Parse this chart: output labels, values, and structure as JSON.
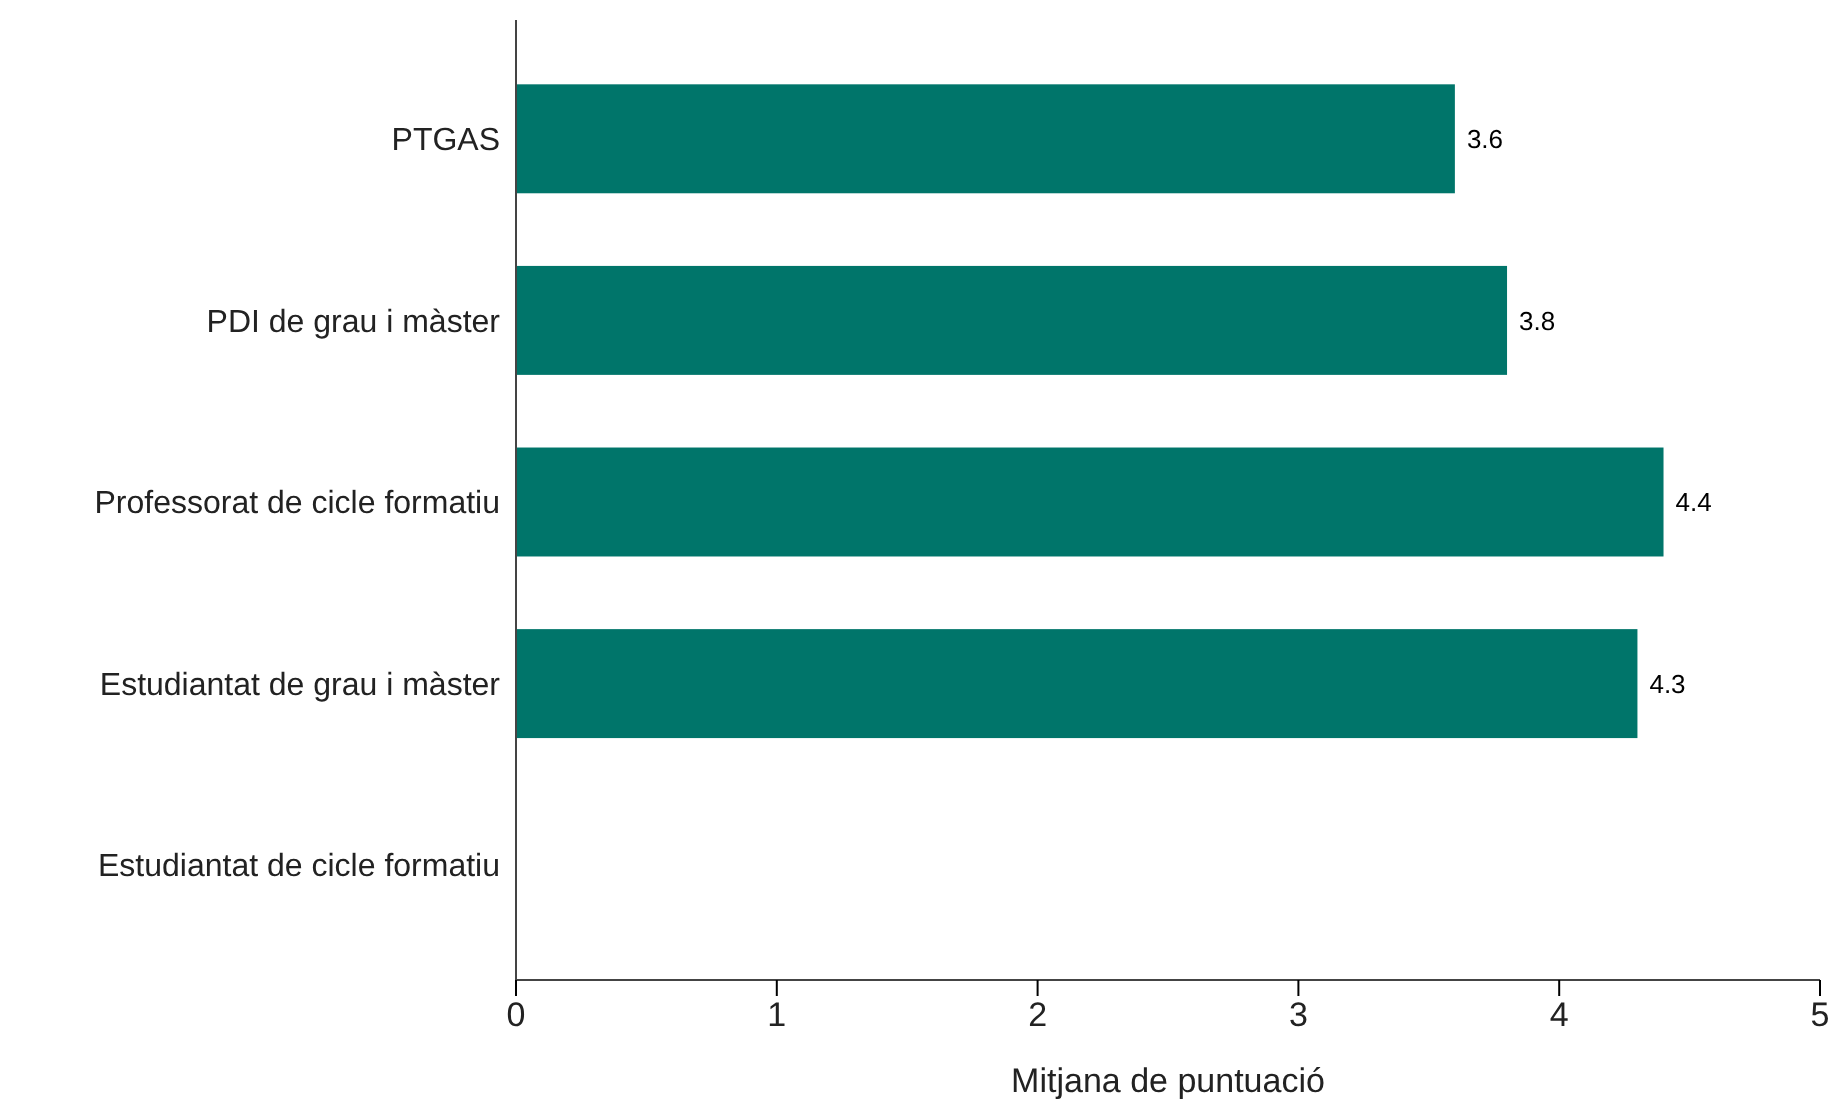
{
  "chart_data": {
    "type": "bar",
    "orientation": "horizontal",
    "xlabel": "Mitjana de puntuació",
    "categories": [
      "PTGAS",
      "PDI de grau i màster",
      "Professorat de cicle formatiu",
      "Estudiantat de grau i màster",
      "Estudiantat de cicle formatiu"
    ],
    "values": [
      3.6,
      3.8,
      4.4,
      4.3,
      null
    ],
    "color": "#00756a",
    "xlim": [
      0,
      5
    ],
    "xticks": [
      0,
      1,
      2,
      3,
      4,
      5
    ],
    "data_labels": true
  }
}
